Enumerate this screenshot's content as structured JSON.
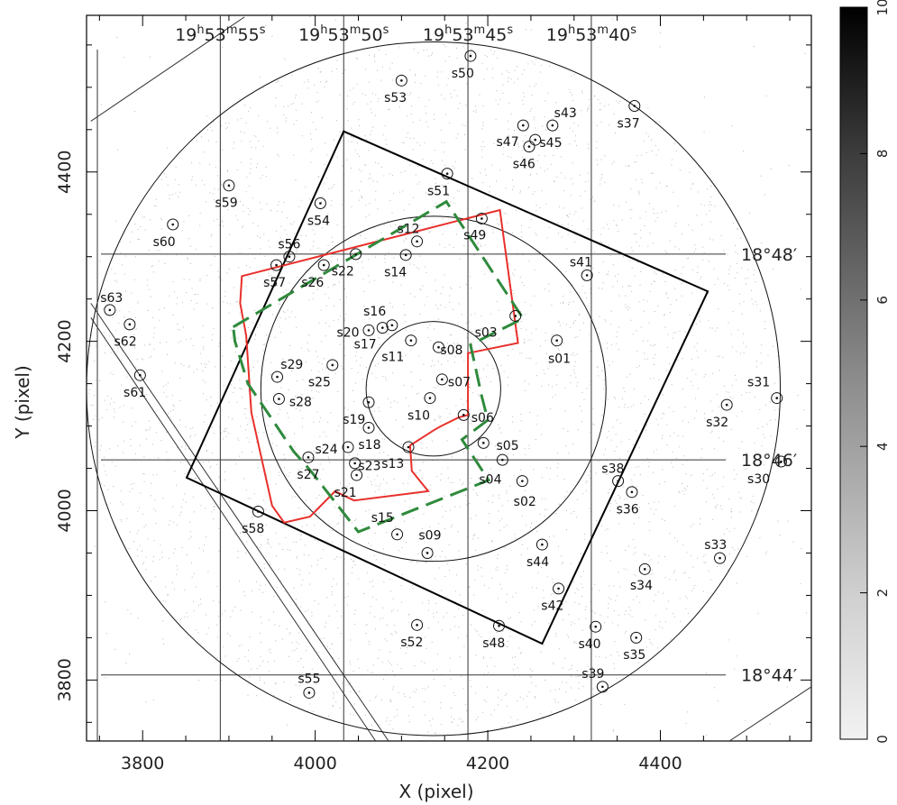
{
  "chart_data": {
    "type": "scatter",
    "xlabel": "X (pixel)",
    "ylabel": "Y (pixel)",
    "xlim": [
      3735,
      4575
    ],
    "ylim": [
      3728,
      4585
    ],
    "xticks": [
      3800,
      4000,
      4200,
      4400
    ],
    "yticks": [
      3800,
      4000,
      4200,
      4400
    ],
    "ra_labels": [
      {
        "text": "19h53m55s",
        "x": 3890
      },
      {
        "text": "19h53m50s",
        "x": 4033
      },
      {
        "text": "19h53m45s",
        "x": 4177
      },
      {
        "text": "19h53m40s",
        "x": 4320
      }
    ],
    "dec_labels": [
      {
        "text": "18°48′",
        "y": 4303
      },
      {
        "text": "18°46′",
        "y": 4060
      },
      {
        "text": "18°44′",
        "y": 3806
      }
    ],
    "colorbar": {
      "min": 0,
      "max": 10,
      "ticks": [
        0,
        2,
        4,
        6,
        8,
        10
      ]
    },
    "circles": [
      {
        "cx": 4137,
        "cy": 4144,
        "r": 78
      },
      {
        "cx": 4137,
        "cy": 4144,
        "r": 200
      },
      {
        "cx": 4137,
        "cy": 4144,
        "r": 402
      }
    ],
    "regions": [
      {
        "name": "black",
        "color": "#000000",
        "dashed": false,
        "points": [
          [
            4033,
            4448
          ],
          [
            4455,
            4259
          ],
          [
            4263,
            3843
          ],
          [
            3851,
            4039
          ]
        ]
      },
      {
        "name": "red",
        "color": "#e8302c",
        "dashed": false,
        "points": [
          [
            3915,
            4277
          ],
          [
            4214,
            4355
          ],
          [
            4235,
            4198
          ],
          [
            4177,
            4186
          ],
          [
            4177,
            4113
          ],
          [
            4166,
            4110
          ],
          [
            4146,
            4100
          ],
          [
            4139,
            4096
          ],
          [
            4110,
            4077
          ],
          [
            4112,
            4047
          ],
          [
            4131,
            4023
          ],
          [
            4045,
            4012
          ],
          [
            4023,
            4023
          ],
          [
            3994,
            3993
          ],
          [
            3964,
            3986
          ],
          [
            3950,
            4006
          ],
          [
            3926,
            4116
          ],
          [
            3920,
            4207
          ],
          [
            3913,
            4245
          ]
        ]
      },
      {
        "name": "green",
        "color": "#2f8a3c",
        "dashed": true,
        "points": [
          [
            3905,
            4217
          ],
          [
            4152,
            4365
          ],
          [
            4241,
            4227
          ],
          [
            4180,
            4196
          ],
          [
            4193,
            4135
          ],
          [
            4200,
            4107
          ],
          [
            4170,
            4084
          ],
          [
            4201,
            4036
          ],
          [
            4050,
            3975
          ],
          [
            3994,
            4048
          ],
          [
            3975,
            4070
          ],
          [
            3950,
            4108
          ],
          [
            3922,
            4150
          ],
          [
            3907,
            4200
          ]
        ]
      }
    ],
    "lines": [
      [
        [
          3740,
          4460
        ],
        [
          3918,
          4583
        ]
      ],
      [
        [
          3740,
          4245
        ],
        [
          4085,
          3728
        ]
      ],
      [
        [
          3740,
          4228
        ],
        [
          4070,
          3728
        ]
      ],
      [
        [
          4480,
          3728
        ],
        [
          4575,
          3792
        ]
      ]
    ],
    "sources": [
      {
        "name": "s01",
        "x": 4280,
        "y": 4201,
        "lx": 4283,
        "ly": 4180
      },
      {
        "name": "s02",
        "x": 4240,
        "y": 4035,
        "lx": 4243,
        "ly": 4011
      },
      {
        "name": "s03",
        "x": 4232,
        "y": 4230,
        "lx": 4198,
        "ly": 4211
      },
      {
        "name": "s04",
        "x": 4217,
        "y": 4060,
        "lx": 4203,
        "ly": 4037
      },
      {
        "name": "s05",
        "x": 4195,
        "y": 4080,
        "lx": 4223,
        "ly": 4077
      },
      {
        "name": "s06",
        "x": 4172,
        "y": 4113,
        "lx": 4194,
        "ly": 4110
      },
      {
        "name": "s07",
        "x": 4147,
        "y": 4155,
        "lx": 4167,
        "ly": 4152
      },
      {
        "name": "s08",
        "x": 4143,
        "y": 4193,
        "lx": 4158,
        "ly": 4190
      },
      {
        "name": "s09",
        "x": 4130,
        "y": 3950,
        "lx": 4133,
        "ly": 3971
      },
      {
        "name": "s10",
        "x": 4133,
        "y": 4133,
        "lx": 4120,
        "ly": 4113
      },
      {
        "name": "s11",
        "x": 4111,
        "y": 4201,
        "lx": 4090,
        "ly": 4182
      },
      {
        "name": "s12",
        "x": 4118,
        "y": 4318,
        "lx": 4108,
        "ly": 4333
      },
      {
        "name": "s13",
        "x": 4108,
        "y": 4075,
        "lx": 4090,
        "ly": 4056
      },
      {
        "name": "s14",
        "x": 4105,
        "y": 4302,
        "lx": 4093,
        "ly": 4282
      },
      {
        "name": "s15",
        "x": 4095,
        "y": 3972,
        "lx": 4078,
        "ly": 3992
      },
      {
        "name": "s16",
        "x": 4089,
        "y": 4219,
        "lx": 4069,
        "ly": 4236
      },
      {
        "name": "s17",
        "x": 4078,
        "y": 4216,
        "lx": 4058,
        "ly": 4197
      },
      {
        "name": "s18",
        "x": 4062,
        "y": 4098,
        "lx": 4063,
        "ly": 4078
      },
      {
        "name": "s19",
        "x": 4062,
        "y": 4128,
        "lx": 4045,
        "ly": 4108
      },
      {
        "name": "s20",
        "x": 4062,
        "y": 4213,
        "lx": 4038,
        "ly": 4211
      },
      {
        "name": "s21",
        "x": 4048,
        "y": 4042,
        "lx": 4035,
        "ly": 4022
      },
      {
        "name": "s22",
        "x": 4047,
        "y": 4303,
        "lx": 4032,
        "ly": 4283
      },
      {
        "name": "s23",
        "x": 4046,
        "y": 4056,
        "lx": 4063,
        "ly": 4053
      },
      {
        "name": "s24",
        "x": 4038,
        "y": 4075,
        "lx": 4013,
        "ly": 4073
      },
      {
        "name": "s25",
        "x": 4020,
        "y": 4172,
        "lx": 4005,
        "ly": 4152
      },
      {
        "name": "s26",
        "x": 4010,
        "y": 4290,
        "lx": 3997,
        "ly": 4270
      },
      {
        "name": "s27",
        "x": 3992,
        "y": 4063,
        "lx": 3992,
        "ly": 4043
      },
      {
        "name": "s28",
        "x": 3958,
        "y": 4132,
        "lx": 3983,
        "ly": 4129
      },
      {
        "name": "s29",
        "x": 3956,
        "y": 4158,
        "lx": 3973,
        "ly": 4173
      },
      {
        "name": "s30",
        "x": 4540,
        "y": 4058,
        "lx": 4514,
        "ly": 4038
      },
      {
        "name": "s31",
        "x": 4535,
        "y": 4133,
        "lx": 4514,
        "ly": 4152
      },
      {
        "name": "s32",
        "x": 4477,
        "y": 4125,
        "lx": 4466,
        "ly": 4105
      },
      {
        "name": "s33",
        "x": 4469,
        "y": 3944,
        "lx": 4464,
        "ly": 3960
      },
      {
        "name": "s34",
        "x": 4382,
        "y": 3931,
        "lx": 4378,
        "ly": 3912
      },
      {
        "name": "s35",
        "x": 4372,
        "y": 3850,
        "lx": 4370,
        "ly": 3830
      },
      {
        "name": "s36",
        "x": 4367,
        "y": 4022,
        "lx": 4362,
        "ly": 4002
      },
      {
        "name": "s37",
        "x": 4370,
        "y": 4478,
        "lx": 4363,
        "ly": 4458
      },
      {
        "name": "s38",
        "x": 4351,
        "y": 4035,
        "lx": 4345,
        "ly": 4050
      },
      {
        "name": "s39",
        "x": 4333,
        "y": 3792,
        "lx": 4322,
        "ly": 3808
      },
      {
        "name": "s40",
        "x": 4325,
        "y": 3863,
        "lx": 4318,
        "ly": 3843
      },
      {
        "name": "s41",
        "x": 4315,
        "y": 4278,
        "lx": 4308,
        "ly": 4294
      },
      {
        "name": "s42",
        "x": 4282,
        "y": 3908,
        "lx": 4275,
        "ly": 3888
      },
      {
        "name": "s43",
        "x": 4275,
        "y": 4455,
        "lx": 4290,
        "ly": 4470
      },
      {
        "name": "s44",
        "x": 4263,
        "y": 3960,
        "lx": 4258,
        "ly": 3940
      },
      {
        "name": "s45",
        "x": 4255,
        "y": 4438,
        "lx": 4273,
        "ly": 4435
      },
      {
        "name": "s46",
        "x": 4248,
        "y": 4430,
        "lx": 4242,
        "ly": 4410
      },
      {
        "name": "s47",
        "x": 4241,
        "y": 4455,
        "lx": 4223,
        "ly": 4436
      },
      {
        "name": "s48",
        "x": 4213,
        "y": 3864,
        "lx": 4207,
        "ly": 3844
      },
      {
        "name": "s49",
        "x": 4193,
        "y": 4345,
        "lx": 4185,
        "ly": 4326
      },
      {
        "name": "s50",
        "x": 4180,
        "y": 4537,
        "lx": 4171,
        "ly": 4517
      },
      {
        "name": "s51",
        "x": 4153,
        "y": 4398,
        "lx": 4143,
        "ly": 4378
      },
      {
        "name": "s52",
        "x": 4118,
        "y": 3865,
        "lx": 4112,
        "ly": 3845
      },
      {
        "name": "s53",
        "x": 4100,
        "y": 4508,
        "lx": 4093,
        "ly": 4488
      },
      {
        "name": "s54",
        "x": 4006,
        "y": 4363,
        "lx": 4004,
        "ly": 4343
      },
      {
        "name": "s55",
        "x": 3993,
        "y": 3785,
        "lx": 3993,
        "ly": 3802
      },
      {
        "name": "s56",
        "x": 3970,
        "y": 4300,
        "lx": 3970,
        "ly": 4315
      },
      {
        "name": "s57",
        "x": 3955,
        "y": 4290,
        "lx": 3953,
        "ly": 4270
      },
      {
        "name": "s58",
        "x": 3934,
        "y": 3999,
        "lx": 3928,
        "ly": 3979
      },
      {
        "name": "s59",
        "x": 3900,
        "y": 4384,
        "lx": 3897,
        "ly": 4364
      },
      {
        "name": "s60",
        "x": 3835,
        "y": 4338,
        "lx": 3825,
        "ly": 4318
      },
      {
        "name": "s61",
        "x": 3797,
        "y": 4160,
        "lx": 3791,
        "ly": 4140
      },
      {
        "name": "s62",
        "x": 3785,
        "y": 4220,
        "lx": 3780,
        "ly": 4200
      },
      {
        "name": "s63",
        "x": 3762,
        "y": 4237,
        "lx": 3764,
        "ly": 4252
      }
    ]
  }
}
